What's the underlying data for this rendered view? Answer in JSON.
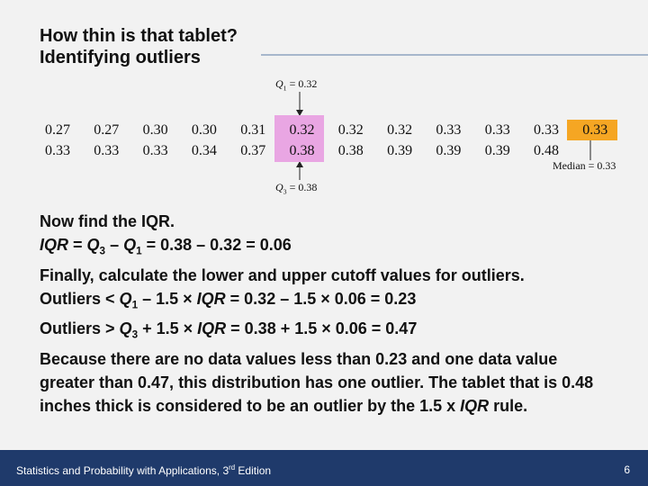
{
  "title": [
    "How thin is that tablet?",
    "Identifying outliers"
  ],
  "q1_label": [
    {
      "text": "Q",
      "format": "italic"
    },
    {
      "text": "1",
      "format": "sub"
    },
    {
      "text": " = 0.32"
    }
  ],
  "data_rows": [
    [
      "0.27",
      "0.27",
      "0.30",
      "0.30",
      "0.31",
      "0.32",
      "0.32",
      "0.32",
      "0.33",
      "0.33",
      "0.33",
      "0.33"
    ],
    [
      "0.33",
      "0.33",
      "0.33",
      "0.34",
      "0.37",
      "0.38",
      "0.38",
      "0.39",
      "0.39",
      "0.39",
      "0.48"
    ]
  ],
  "median_label": "Median = 0.33",
  "q3_label": [
    {
      "text": "Q",
      "format": "italic"
    },
    {
      "text": "3",
      "format": "sub"
    },
    {
      "text": " = 0.38"
    }
  ],
  "body": [
    [
      {
        "text": "Now find the IQR."
      }
    ],
    [
      {
        "text": "IQR",
        "format": "italic"
      },
      {
        "text": " = "
      },
      {
        "text": "Q",
        "format": "italic"
      },
      {
        "text": "3",
        "format": "sub"
      },
      {
        "text": " – "
      },
      {
        "text": "Q",
        "format": "italic"
      },
      {
        "text": "1",
        "format": "sub"
      },
      {
        "text": " = 0.38 – 0.32 = 0.06"
      }
    ],
    [
      {
        "text": "Finally, calculate the lower and upper cutoff values for outliers."
      }
    ],
    [
      {
        "text": "Outliers < "
      },
      {
        "text": "Q",
        "format": "italic"
      },
      {
        "text": "1",
        "format": "sub"
      },
      {
        "text": " – 1.5 × "
      },
      {
        "text": "IQR",
        "format": "italic"
      },
      {
        "text": " = 0.32  – 1.5 × 0.06 = 0.23"
      }
    ],
    [
      {
        "text": "Outliers > "
      },
      {
        "text": "Q",
        "format": "italic"
      },
      {
        "text": "3",
        "format": "sub"
      },
      {
        "text": " + 1.5 × "
      },
      {
        "text": "IQR",
        "format": "italic"
      },
      {
        "text": " = 0.38  + 1.5 × 0.06 = 0.47"
      }
    ],
    [
      {
        "text": "Because there are no data values less than 0.23 and one data value greater than 0.47, this distribution has one outlier. The tablet that is 0.48 inches thick is considered to be an outlier by the 1.5 x "
      },
      {
        "text": "IQR",
        "format": "italic"
      },
      {
        "text": " rule."
      }
    ]
  ],
  "footer": {
    "source": [
      {
        "text": "Statistics and Probability with Applications, 3"
      },
      {
        "text": "rd",
        "format": "sup"
      },
      {
        "text": " Edition"
      }
    ],
    "page": "6"
  }
}
